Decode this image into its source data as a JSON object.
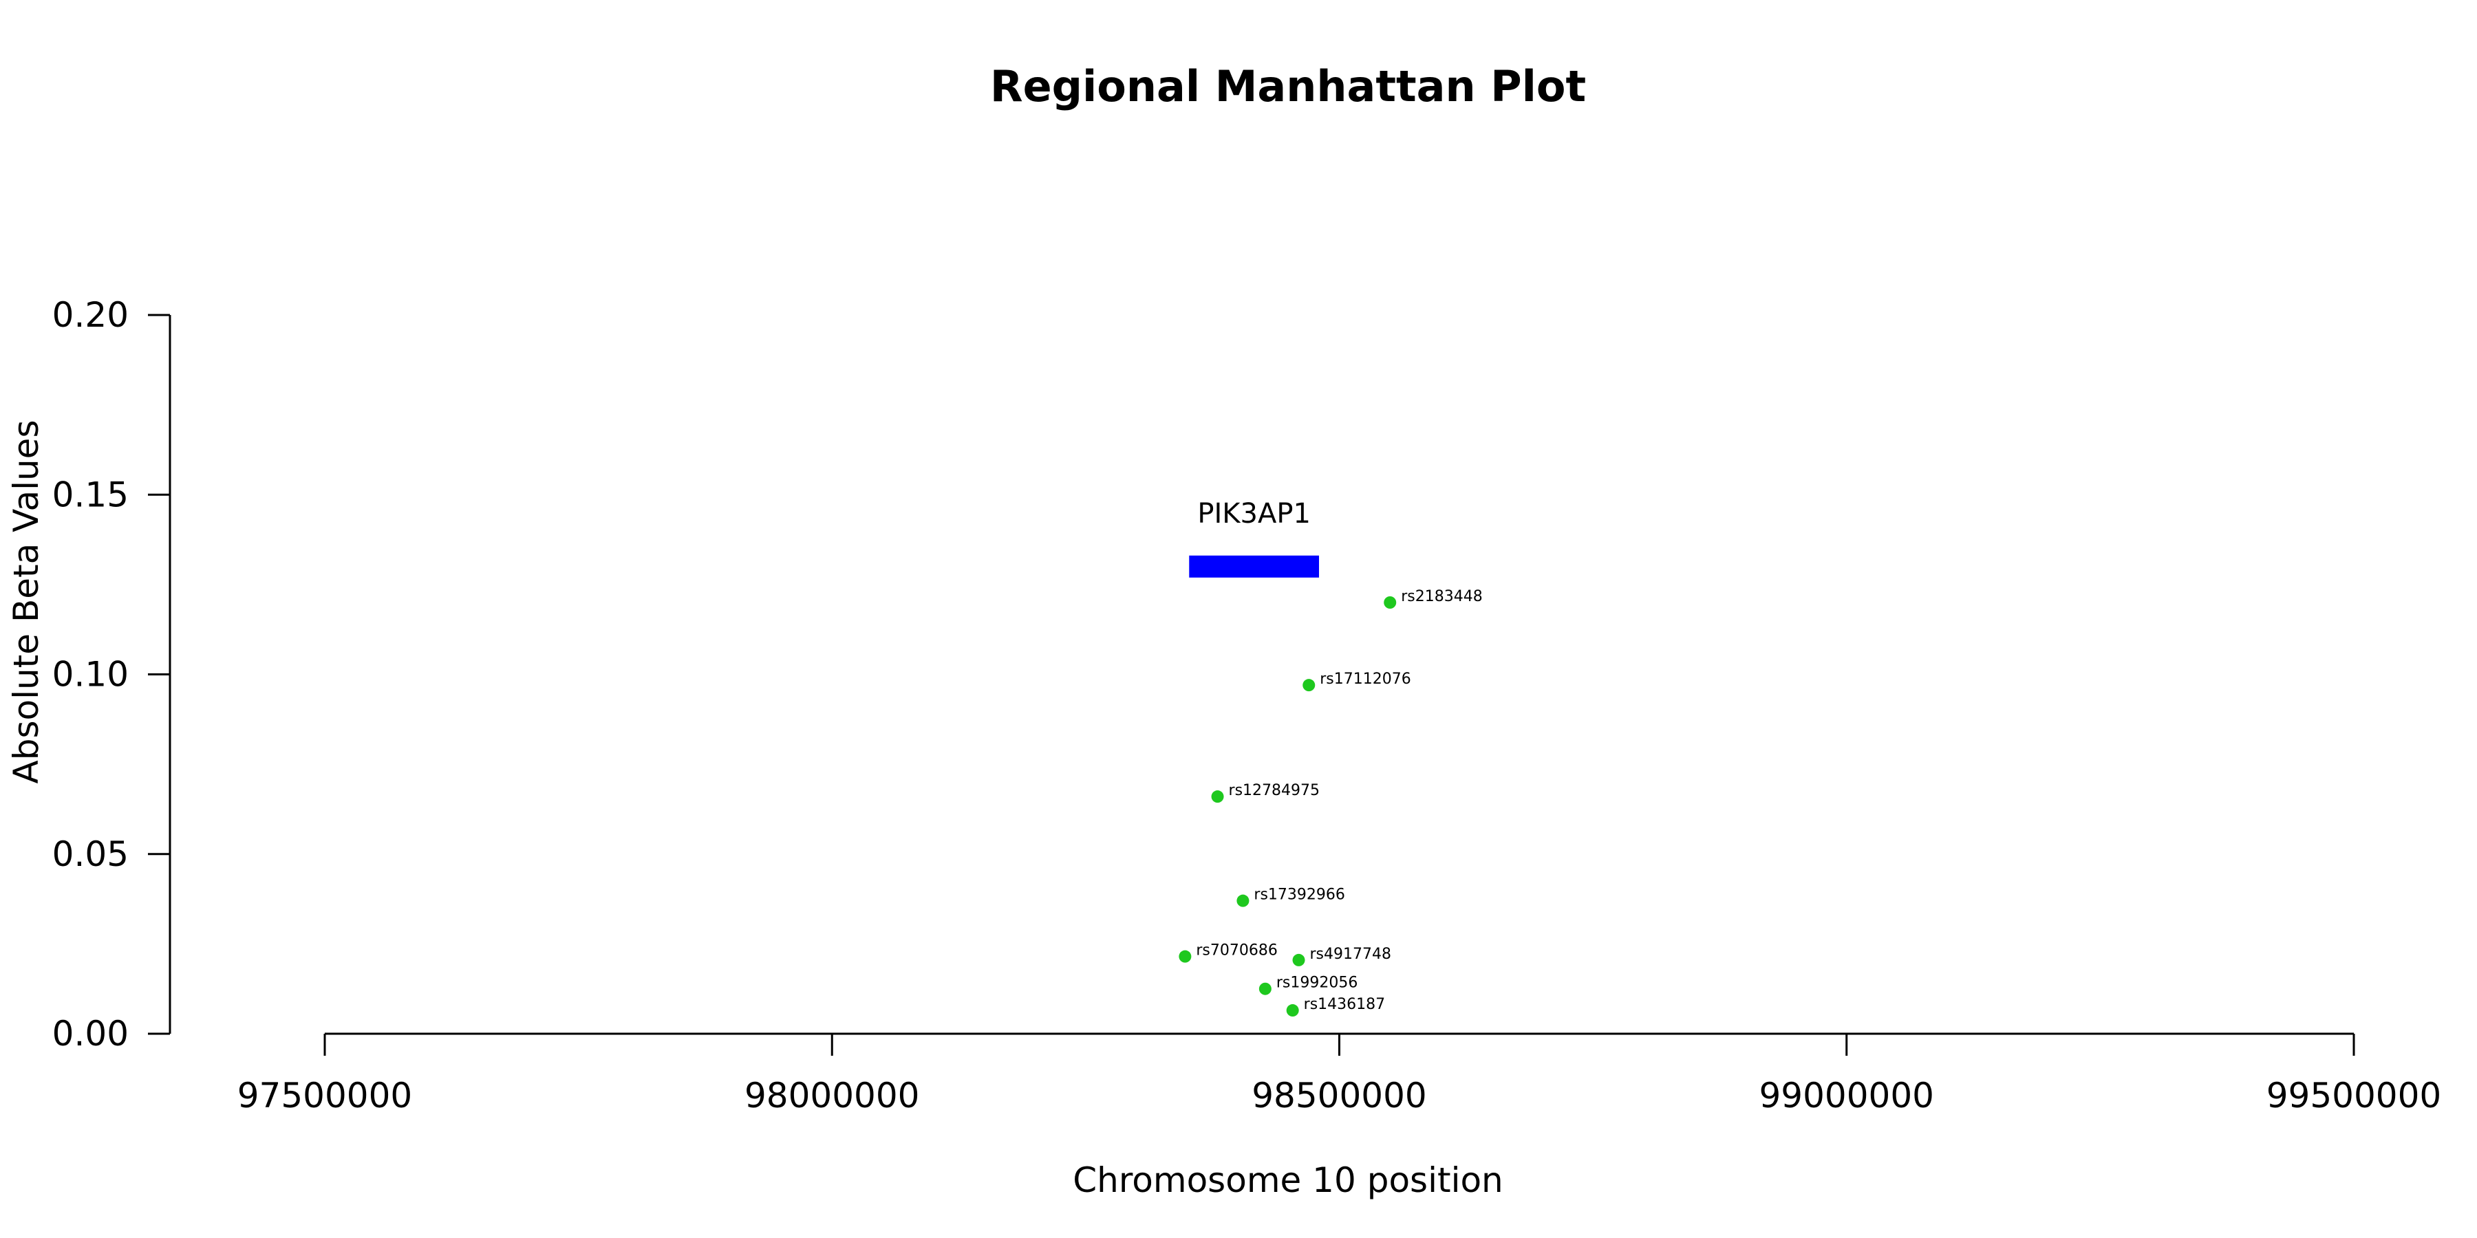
{
  "chart_data": {
    "type": "scatter",
    "title": "Regional Manhattan Plot",
    "xlabel": "Chromosome 10 position",
    "ylabel": "Absolute Beta Values",
    "xlim": [
      97500000,
      99500000
    ],
    "ylim": [
      0,
      0.2
    ],
    "x_ticks": [
      97500000,
      98000000,
      98500000,
      99000000,
      99500000
    ],
    "y_ticks": [
      0.0,
      0.05,
      0.1,
      0.15,
      0.2
    ],
    "x_tick_labels": [
      "97500000",
      "98000000",
      "98500000",
      "99000000",
      "99500000"
    ],
    "y_tick_labels": [
      "0.00",
      "0.05",
      "0.10",
      "0.15",
      "0.20"
    ],
    "point_color": "#1ec81e",
    "gene": {
      "name": "PIK3AP1",
      "start": 98352000,
      "end": 98480000,
      "y": 0.13,
      "color": "#0000ff"
    },
    "points": [
      {
        "label": "rs2183448",
        "x": 98550000,
        "y": 0.12
      },
      {
        "label": "rs17112076",
        "x": 98470000,
        "y": 0.097
      },
      {
        "label": "rs12784975",
        "x": 98380000,
        "y": 0.066
      },
      {
        "label": "rs17392966",
        "x": 98405000,
        "y": 0.037
      },
      {
        "label": "rs7070686",
        "x": 98348000,
        "y": 0.0215
      },
      {
        "label": "rs4917748",
        "x": 98460000,
        "y": 0.0205
      },
      {
        "label": "rs1992056",
        "x": 98427000,
        "y": 0.0125
      },
      {
        "label": "rs1436187",
        "x": 98454000,
        "y": 0.0065
      }
    ]
  }
}
